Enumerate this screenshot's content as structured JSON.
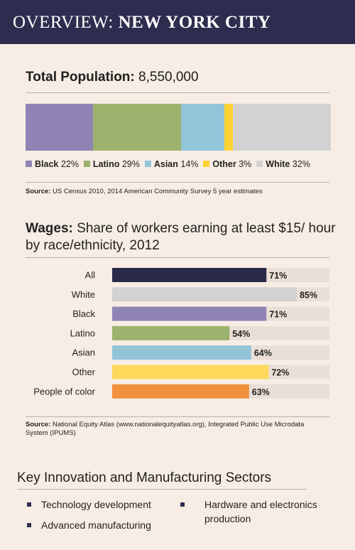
{
  "header": {
    "prefix": "OVERVIEW: ",
    "city": "NEW YORK CITY"
  },
  "population": {
    "label": "Total Population:",
    "value": "8,550,000",
    "segments": [
      {
        "name": "Black",
        "pct": 22,
        "pct_label": "22%",
        "color": "#8f84b4"
      },
      {
        "name": "Latino",
        "pct": 29,
        "pct_label": "29%",
        "color": "#9db26c"
      },
      {
        "name": "Asian",
        "pct": 14,
        "pct_label": "14%",
        "color": "#93c5d9"
      },
      {
        "name": "Other",
        "pct": 3,
        "pct_label": "3%",
        "color": "#ffd234"
      },
      {
        "name": "White",
        "pct": 32,
        "pct_label": "32%",
        "color": "#d2d2d2"
      }
    ],
    "source_label": "Source:",
    "source_text": "US Census 2010, 2014 American Community Survey 5 year estimates"
  },
  "wages": {
    "title_bold": "Wages:",
    "title_rest": "Share of workers earning at least $15/ hour by race/ethnicity, 2012",
    "source_label": "Source:",
    "source_text": "National Equity Atlas (www.nationalequityatlas.org), Integrated Public Use Microdata System (IPUMS)"
  },
  "chart_data": {
    "type": "bar",
    "orientation": "horizontal",
    "title": "Share of workers earning at least $15/ hour by race/ethnicity, 2012",
    "categories": [
      "All",
      "White",
      "Black",
      "Latino",
      "Asian",
      "Other",
      "People of color"
    ],
    "values": [
      71,
      85,
      71,
      54,
      64,
      72,
      63
    ],
    "value_labels": [
      "71%",
      "85%",
      "71%",
      "54%",
      "64%",
      "72%",
      "63%"
    ],
    "colors": [
      "#2a2a4a",
      "#d2d2d2",
      "#8f84b4",
      "#9db26c",
      "#93c5d9",
      "#ffd95c",
      "#f0913d"
    ],
    "track_color": "#e9dfd6",
    "xlim": [
      0,
      100
    ]
  },
  "sectors": {
    "title": "Key Innovation and Manufacturing Sectors",
    "items": [
      "Technology development",
      "Advanced manufacturing",
      "Hardware and electronics production"
    ]
  }
}
